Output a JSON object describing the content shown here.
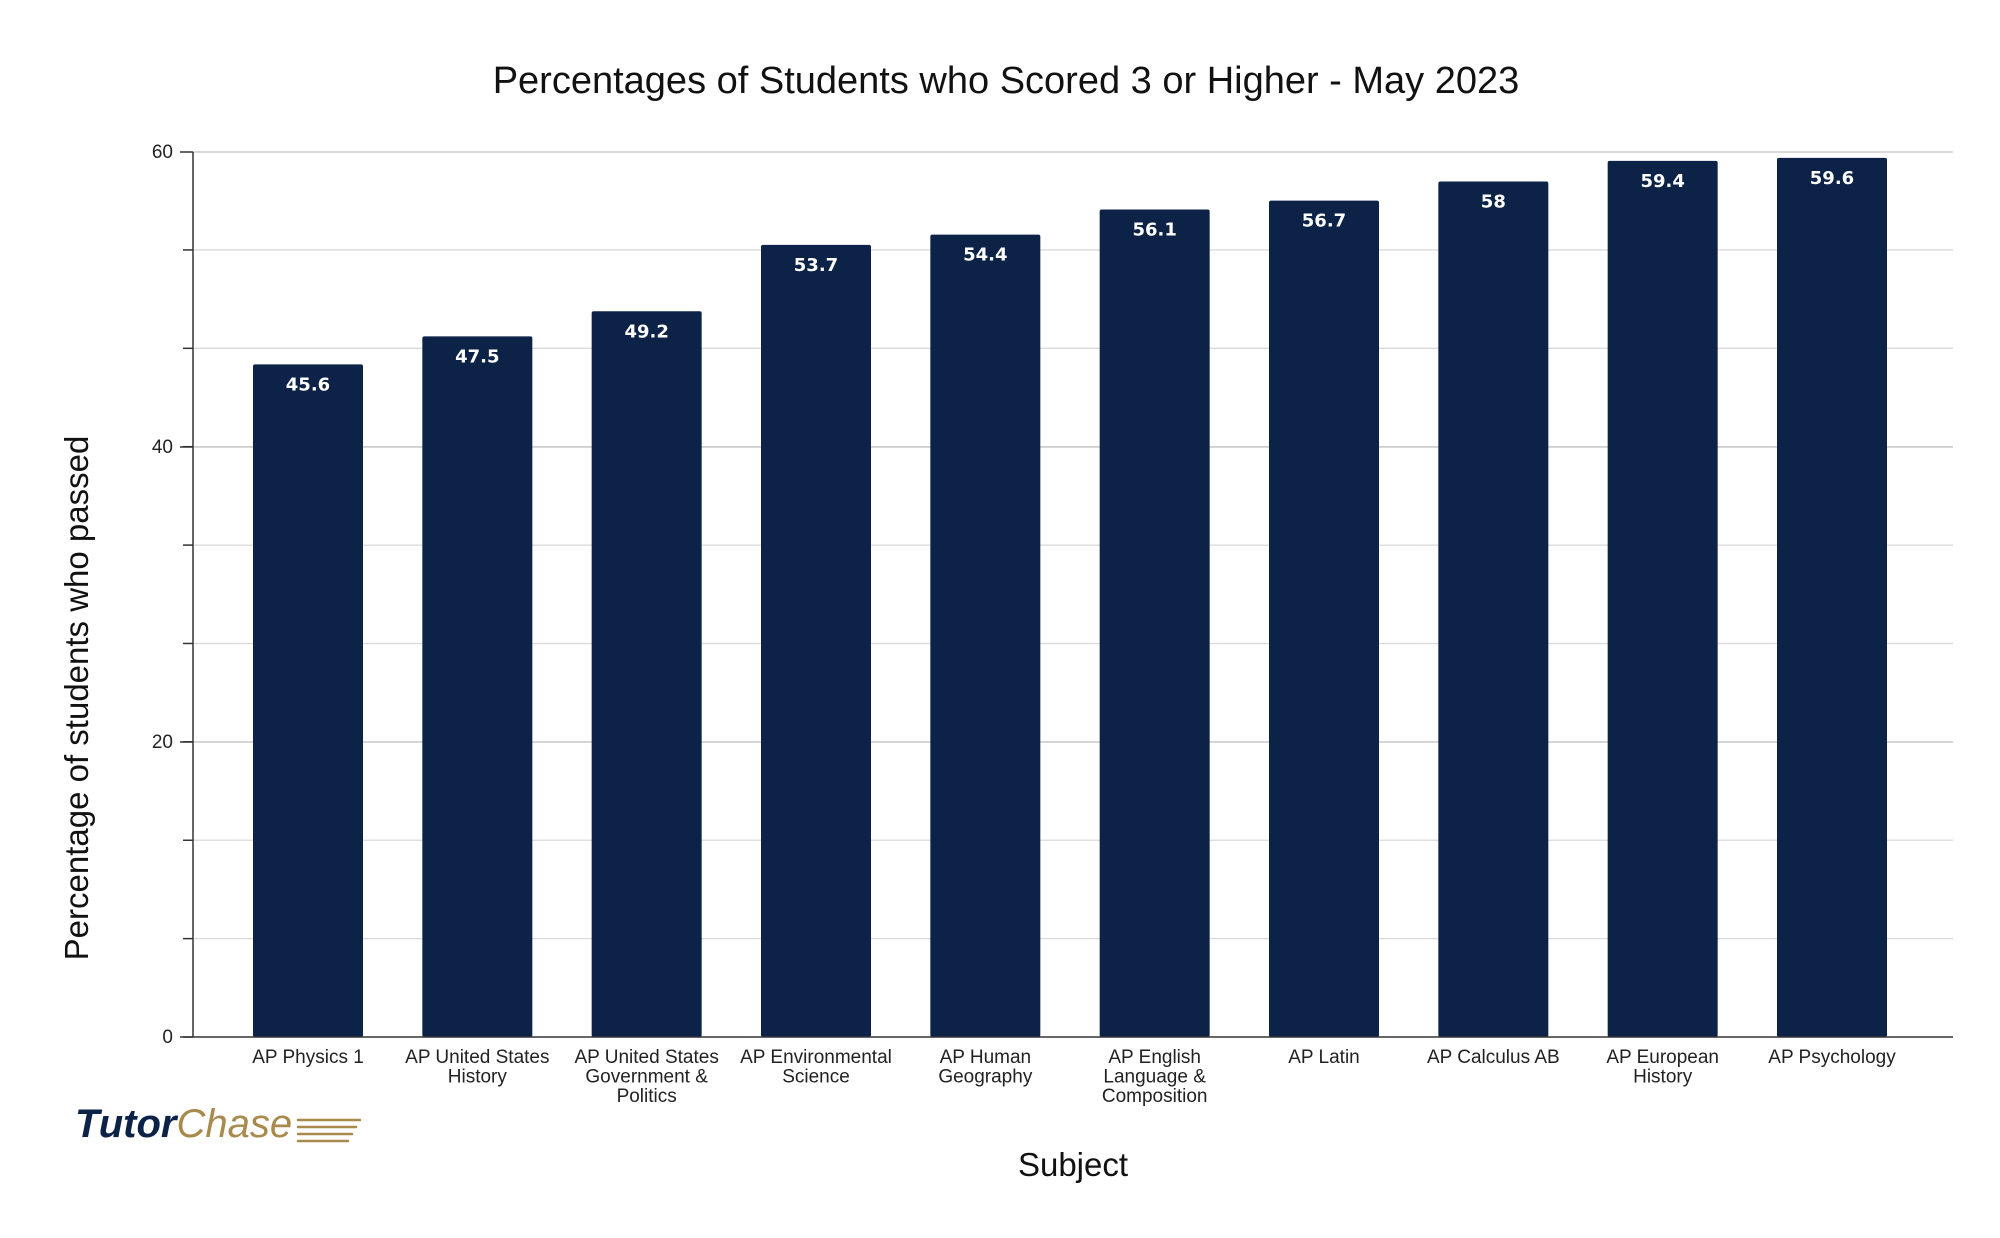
{
  "title": "Percentages of Students who Scored 3 or Higher - May 2023",
  "colors": {
    "bar": "#0c2347",
    "grid": "#d9d9d9",
    "axis": "#333333",
    "logo_primary": "#0c2347",
    "logo_accent": "#a88a4c"
  },
  "logo": {
    "part1": "Tutor",
    "part2": "Chase"
  },
  "chart_data": {
    "type": "bar",
    "title": "Percentages of Students who Scored 3 or Higher - May 2023",
    "xlabel": "Subject",
    "ylabel": "Percentage of students who passed",
    "categories": [
      "AP Physics 1",
      "AP United States History",
      "AP United States Government & Politics",
      "AP Environmental Science",
      "AP Human Geography",
      "AP English Language & Composition",
      "AP Latin",
      "AP Calculus AB",
      "AP European History",
      "AP Psychology"
    ],
    "category_label_lines": [
      [
        "AP Physics 1"
      ],
      [
        "AP United States",
        "History"
      ],
      [
        "AP United States",
        "Government &",
        "Politics"
      ],
      [
        "AP Environmental",
        "Science"
      ],
      [
        "AP Human",
        "Geography"
      ],
      [
        "AP English",
        "Language &",
        "Composition"
      ],
      [
        "AP Latin"
      ],
      [
        "AP Calculus AB"
      ],
      [
        "AP European",
        "History"
      ],
      [
        "AP Psychology"
      ]
    ],
    "values": [
      45.6,
      47.5,
      49.2,
      53.7,
      54.4,
      56.1,
      56.7,
      58,
      59.4,
      59.6
    ],
    "value_labels": [
      "45.6",
      "47.5",
      "49.2",
      "53.7",
      "54.4",
      "56.1",
      "56.7",
      "58",
      "59.4",
      "59.6"
    ],
    "ylim": [
      0,
      60
    ],
    "yticks": [
      0,
      20,
      40,
      60
    ],
    "minor_tick_step": 6.67,
    "grid": true,
    "legend": "none"
  }
}
